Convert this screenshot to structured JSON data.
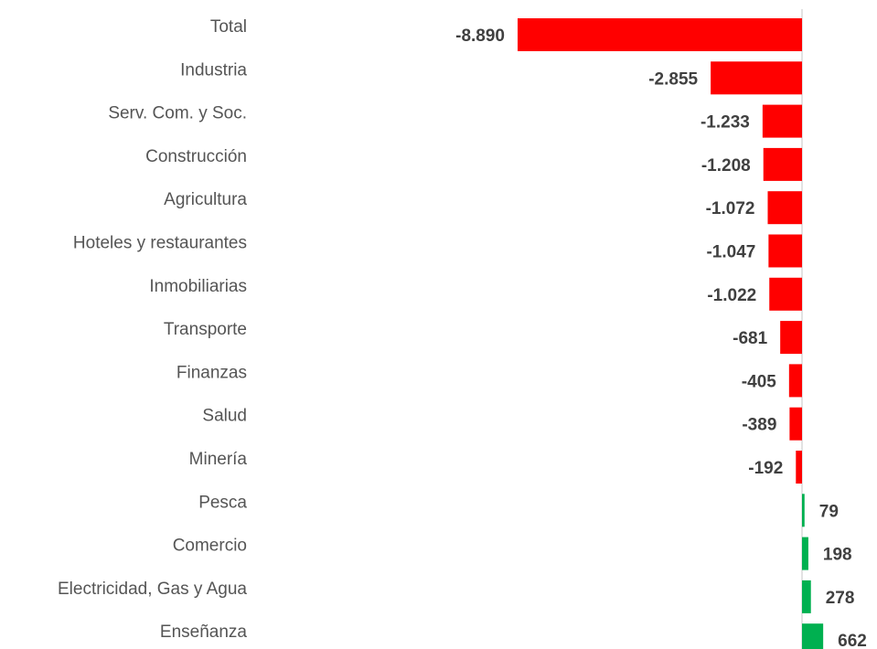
{
  "chart_data": {
    "type": "bar",
    "orientation": "horizontal",
    "categories": [
      "Total",
      "Industria",
      "Serv. Com. y Soc.",
      "Construcción",
      "Agricultura",
      "Hoteles y restaurantes",
      "Inmobiliarias",
      "Transporte",
      "Finanzas",
      "Salud",
      "Minería",
      "Pesca",
      "Comercio",
      "Electricidad, Gas y Agua",
      "Enseñanza"
    ],
    "values": [
      -8890,
      -2855,
      -1233,
      -1208,
      -1072,
      -1047,
      -1022,
      -681,
      -405,
      -389,
      -192,
      79,
      198,
      278,
      662
    ],
    "value_labels": [
      "-8.890",
      "-2.855",
      "-1.233",
      "-1.208",
      "-1.072",
      "-1.047",
      "-1.022",
      "-681",
      "-405",
      "-389",
      "-192",
      "79",
      "198",
      "278",
      "662"
    ],
    "negative_color": "#ff0000",
    "positive_color": "#00b050"
  }
}
